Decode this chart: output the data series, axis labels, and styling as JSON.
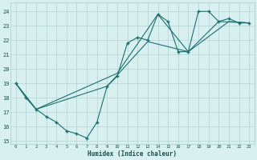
{
  "xlabel": "Humidex (Indice chaleur)",
  "bg_color": "#d8f0f0",
  "grid_color": "#b8d8d8",
  "line_color": "#1a7070",
  "xlim": [
    -0.5,
    23.5
  ],
  "ylim": [
    14.8,
    24.6
  ],
  "yticks": [
    15,
    16,
    17,
    18,
    19,
    20,
    21,
    22,
    23,
    24
  ],
  "xticks": [
    0,
    1,
    2,
    3,
    4,
    5,
    6,
    7,
    8,
    9,
    10,
    11,
    12,
    13,
    14,
    15,
    16,
    17,
    18,
    19,
    20,
    21,
    22,
    23
  ],
  "series1_x": [
    0,
    1,
    2,
    3,
    4,
    5,
    6,
    7,
    8,
    9,
    10,
    11,
    12,
    13,
    14,
    15,
    16,
    17,
    18,
    19,
    20,
    21,
    22,
    23
  ],
  "series1_y": [
    19.0,
    18.0,
    17.2,
    16.7,
    16.3,
    15.7,
    15.5,
    15.2,
    16.3,
    18.8,
    19.5,
    21.8,
    22.2,
    22.0,
    23.8,
    23.3,
    21.2,
    21.2,
    24.0,
    24.0,
    23.3,
    23.5,
    23.2,
    23.2
  ],
  "series2_x": [
    0,
    2,
    9,
    13,
    17,
    21,
    23
  ],
  "series2_y": [
    19.0,
    17.2,
    18.8,
    21.9,
    21.2,
    23.3,
    23.2
  ],
  "series3_x": [
    0,
    2,
    10,
    14,
    17,
    20,
    23
  ],
  "series3_y": [
    19.0,
    17.2,
    19.7,
    23.8,
    21.2,
    23.3,
    23.2
  ]
}
